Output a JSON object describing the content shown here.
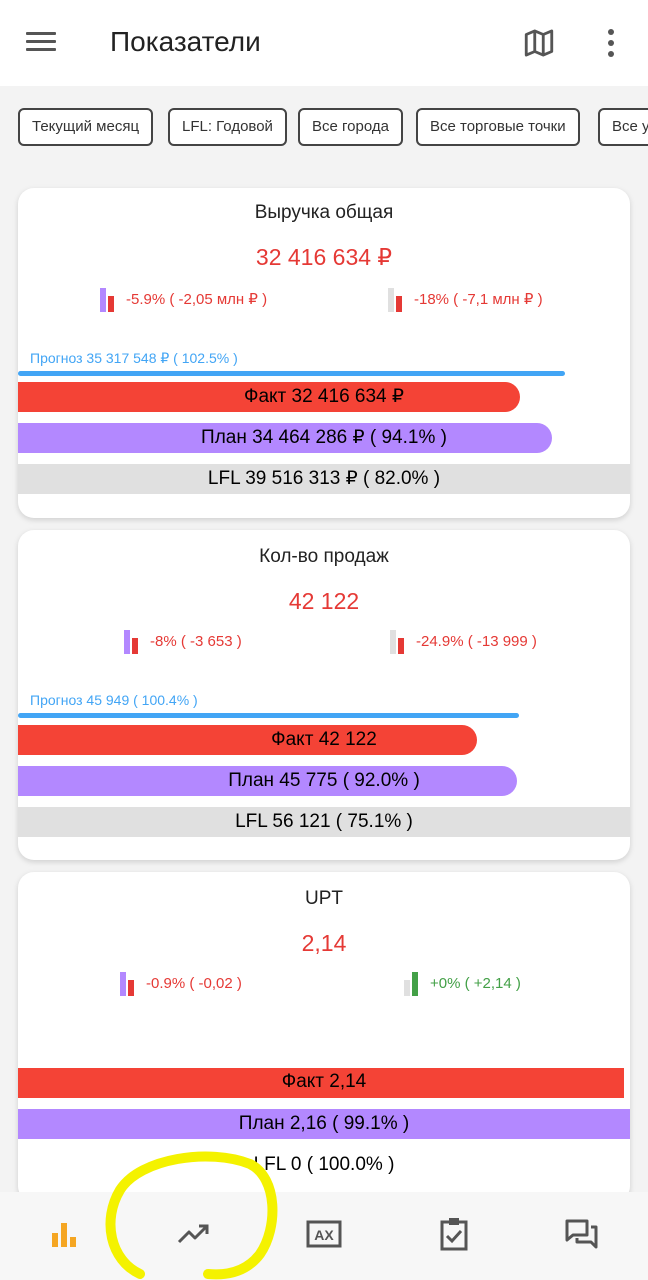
{
  "appbar": {
    "title": "Показатели",
    "menu_icon": "menu-icon",
    "map_icon": "map-icon",
    "more_icon": "more-vert-icon"
  },
  "filters": [
    "Текущий месяц",
    "LFL: Годовой",
    "Все города",
    "Все торговые точки",
    "Все у"
  ],
  "colors": {
    "fact": "#f44336",
    "plan": "#b388ff",
    "lfl": "#e0e0e0",
    "forecast": "#42a5f5",
    "negative": "#e53935",
    "positive": "#43a047",
    "active_nav": "#f5a623"
  },
  "cards": [
    {
      "title": "Выручка общая",
      "value": "32 416 634 ₽",
      "cmp_plan": "-5.9% ( -2,05 млн ₽ )",
      "cmp_lfl": "-18% ( -7,1 млн ₽ )",
      "forecast": "Прогноз 35 317 548 ₽ ( 102.5% )",
      "fact": "Факт 32 416 634 ₽",
      "plan": "План 34 464 286 ₽ ( 94.1% )",
      "lfl": "LFL 39 516 313 ₽ ( 82.0% )"
    },
    {
      "title": "Кол-во продаж",
      "value": "42 122",
      "cmp_plan": "-8% ( -3 653  )",
      "cmp_lfl": "-24.9% ( -13 999  )",
      "forecast": "Прогноз 45 949  ( 100.4% )",
      "fact": "Факт 42 122",
      "plan": "План 45 775  ( 92.0% )",
      "lfl": "LFL 56 121  ( 75.1% )"
    },
    {
      "title": "UPT",
      "value": "2,14",
      "cmp_plan": "-0.9% ( -0,02  )",
      "cmp_lfl": "+0% ( +2,14  )",
      "fact": "Факт 2,14",
      "plan": "План 2,16  ( 99.1% )",
      "lfl": "LFL 0  ( 100.0% )"
    }
  ],
  "bottom_nav": [
    "bar-chart-icon",
    "trending-up-icon",
    "ax-icon",
    "clipboard-check-icon",
    "forum-icon"
  ]
}
